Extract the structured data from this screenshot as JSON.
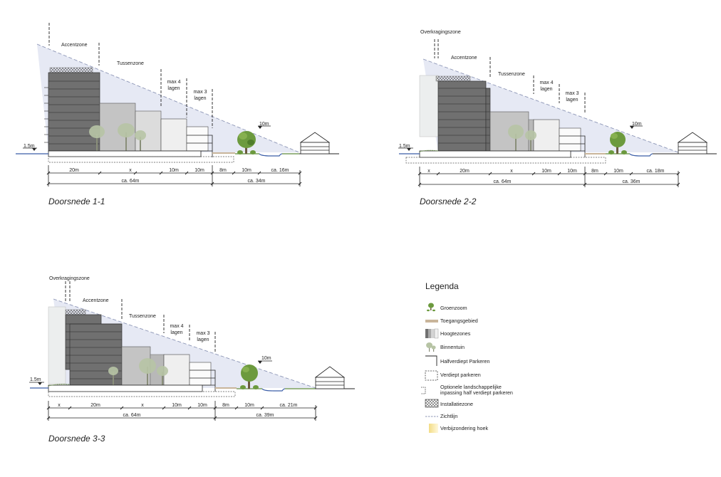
{
  "sections": [
    {
      "caption": "Doorsnede 1-1",
      "zones": {
        "overkraging": "",
        "accent": "Accentzone",
        "tussen": "Tussenzone",
        "max4": [
          "max 4",
          "lagen"
        ],
        "max3": [
          "max 3",
          "lagen"
        ]
      },
      "left_level": "1.5m",
      "right_level": "10m",
      "dims_row1": [
        "20m",
        "x",
        "10m",
        "10m",
        "8m",
        "10m",
        "ca. 16m"
      ],
      "dims_row2": [
        "ca. 64m",
        "ca. 34m"
      ]
    },
    {
      "caption": "Doorsnede 2-2",
      "zones": {
        "overkraging": "Overkragingszone",
        "accent": "Accentzone",
        "tussen": "Tussenzone",
        "max4": [
          "max 4",
          "lagen"
        ],
        "max3": [
          "max 3",
          "lagen"
        ]
      },
      "left_level": "1.5m",
      "right_level": "10m",
      "dims_row1": [
        "x",
        "20m",
        "x",
        "10m",
        "10m",
        "8m",
        "10m",
        "ca. 18m"
      ],
      "dims_row2": [
        "ca. 64m",
        "ca. 36m"
      ]
    },
    {
      "caption": "Doorsnede 3-3",
      "zones": {
        "overkraging": "Overkragingszone",
        "accent": "Accentzone",
        "tussen": "Tussenzone",
        "max4": [
          "max 4",
          "lagen"
        ],
        "max3": [
          "max 3",
          "lagen"
        ]
      },
      "left_level": "1.5m",
      "right_level": "10m",
      "dims_row1": [
        "x",
        "20m",
        "x",
        "10m",
        "10m",
        "8m",
        "10m",
        "ca. 21m"
      ],
      "dims_row2": [
        "ca. 64m",
        "ca. 39m"
      ]
    }
  ],
  "legend": {
    "title": "Legenda",
    "items": [
      {
        "icon": "tree-icon",
        "label": "Groenzoom"
      },
      {
        "icon": "access-bar-icon",
        "label": "Toegangsgebied"
      },
      {
        "icon": "height-zones-icon",
        "label": "Hoogtezones"
      },
      {
        "icon": "courtyard-tree-icon",
        "label": "Binnentuin"
      },
      {
        "icon": "half-sunken-parking-icon",
        "label": "Halfverdiept Parkeren"
      },
      {
        "icon": "sunken-parking-icon",
        "label": "Verdiept parkeren"
      },
      {
        "icon": "optional-parking-icon",
        "label": "Optionele landschappelijke",
        "label2": "inpassing half verdiept parkeren"
      },
      {
        "icon": "installation-zone-icon",
        "label": "Installatiezone"
      },
      {
        "icon": "sightline-icon",
        "label": "Zichtlijn"
      },
      {
        "icon": "corner-emphasis-icon",
        "label": "Verbijzondering hoek"
      }
    ]
  }
}
